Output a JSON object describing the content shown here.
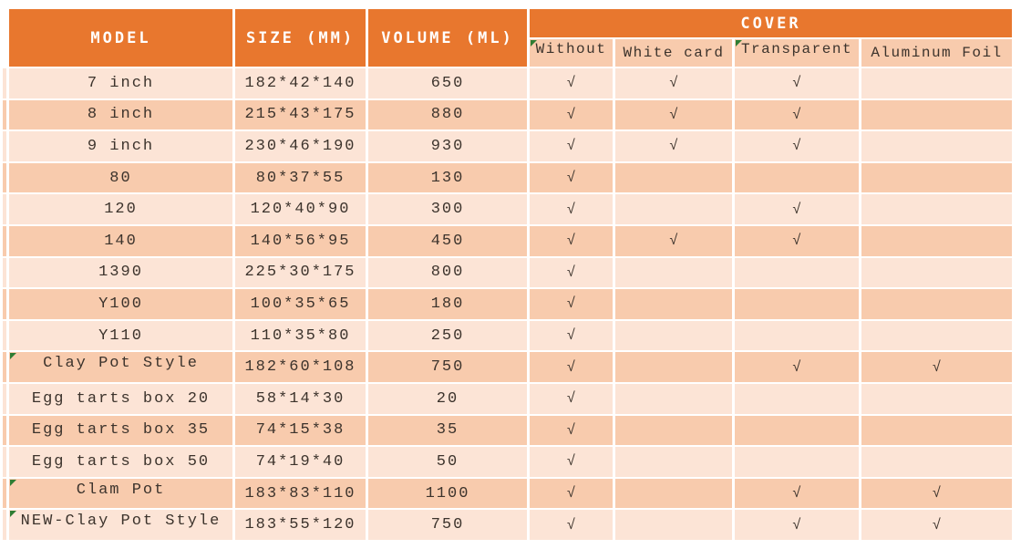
{
  "colors": {
    "header_orange": "#E8772E",
    "row_light": "#FCE4D6",
    "row_dark": "#F8CBAD",
    "grid_white": "#FFFFFF",
    "text_dark": "#3C332C",
    "header_text": "#FFFFFF",
    "marker_green": "#2E7D33"
  },
  "table": {
    "headers": {
      "model": "MODEL",
      "size": "SIZE (MM)",
      "volume": "VOLUME (ML)",
      "cover": "COVER"
    },
    "cover_options": [
      {
        "label": "Without",
        "marker": true
      },
      {
        "label": "White card",
        "marker": false
      },
      {
        "label": "Transparent",
        "marker": true
      },
      {
        "label": "Aluminum Foil",
        "marker": false
      }
    ],
    "check_glyph": "√",
    "rows": [
      {
        "model": "7 inch",
        "size": "182*42*140",
        "volume": "650",
        "covers": [
          "√",
          "√",
          "√",
          ""
        ],
        "marker": false
      },
      {
        "model": "8 inch",
        "size": "215*43*175",
        "volume": "880",
        "covers": [
          "√",
          "√",
          "√",
          ""
        ],
        "marker": false
      },
      {
        "model": "9 inch",
        "size": "230*46*190",
        "volume": "930",
        "covers": [
          "√",
          "√",
          "√",
          ""
        ],
        "marker": false
      },
      {
        "model": "80",
        "size": "80*37*55",
        "volume": "130",
        "covers": [
          "√",
          "",
          "",
          ""
        ],
        "marker": false
      },
      {
        "model": "120",
        "size": "120*40*90",
        "volume": "300",
        "covers": [
          "√",
          "",
          "√",
          ""
        ],
        "marker": false
      },
      {
        "model": "140",
        "size": "140*56*95",
        "volume": "450",
        "covers": [
          "√",
          "√",
          "√",
          ""
        ],
        "marker": false
      },
      {
        "model": "1390",
        "size": "225*30*175",
        "volume": "800",
        "covers": [
          "√",
          "",
          "",
          ""
        ],
        "marker": false
      },
      {
        "model": "Y100",
        "size": "100*35*65",
        "volume": "180",
        "covers": [
          "√",
          "",
          "",
          ""
        ],
        "marker": false
      },
      {
        "model": "Y110",
        "size": "110*35*80",
        "volume": "250",
        "covers": [
          "√",
          "",
          "",
          ""
        ],
        "marker": false
      },
      {
        "model": "Clay Pot Style",
        "size": "182*60*108",
        "volume": "750",
        "covers": [
          "√",
          "",
          "√",
          "√"
        ],
        "marker": true
      },
      {
        "model": "Egg tarts box 20",
        "size": "58*14*30",
        "volume": "20",
        "covers": [
          "√",
          "",
          "",
          ""
        ],
        "marker": false
      },
      {
        "model": "Egg tarts box 35",
        "size": "74*15*38",
        "volume": "35",
        "covers": [
          "√",
          "",
          "",
          ""
        ],
        "marker": false
      },
      {
        "model": "Egg tarts box 50",
        "size": "74*19*40",
        "volume": "50",
        "covers": [
          "√",
          "",
          "",
          ""
        ],
        "marker": false
      },
      {
        "model": "Clam Pot",
        "size": "183*83*110",
        "volume": "1100",
        "covers": [
          "√",
          "",
          "√",
          "√"
        ],
        "marker": true
      },
      {
        "model": "NEW-Clay Pot Style",
        "size": "183*55*120",
        "volume": "750",
        "covers": [
          "√",
          "",
          "√",
          "√"
        ],
        "marker": true
      }
    ]
  },
  "chart_data": {
    "type": "table",
    "title": "",
    "columns": [
      "MODEL",
      "SIZE (MM)",
      "VOLUME (ML)",
      "COVER: Without",
      "COVER: White card",
      "COVER: Transparent",
      "COVER: Aluminum Foil"
    ],
    "rows": [
      [
        "7 inch",
        "182*42*140",
        650,
        true,
        true,
        true,
        false
      ],
      [
        "8 inch",
        "215*43*175",
        880,
        true,
        true,
        true,
        false
      ],
      [
        "9 inch",
        "230*46*190",
        930,
        true,
        true,
        true,
        false
      ],
      [
        "80",
        "80*37*55",
        130,
        true,
        false,
        false,
        false
      ],
      [
        "120",
        "120*40*90",
        300,
        true,
        false,
        true,
        false
      ],
      [
        "140",
        "140*56*95",
        450,
        true,
        true,
        true,
        false
      ],
      [
        "1390",
        "225*30*175",
        800,
        true,
        false,
        false,
        false
      ],
      [
        "Y100",
        "100*35*65",
        180,
        true,
        false,
        false,
        false
      ],
      [
        "Y110",
        "110*35*80",
        250,
        true,
        false,
        false,
        false
      ],
      [
        "Clay Pot Style",
        "182*60*108",
        750,
        true,
        false,
        true,
        true
      ],
      [
        "Egg tarts box 20",
        "58*14*30",
        20,
        true,
        false,
        false,
        false
      ],
      [
        "Egg tarts box 35",
        "74*15*38",
        35,
        true,
        false,
        false,
        false
      ],
      [
        "Egg tarts box 50",
        "74*19*40",
        50,
        true,
        false,
        false,
        false
      ],
      [
        "Clam Pot",
        "183*83*110",
        1100,
        true,
        false,
        true,
        true
      ],
      [
        "NEW-Clay Pot Style",
        "183*55*120",
        750,
        true,
        false,
        true,
        true
      ]
    ]
  }
}
